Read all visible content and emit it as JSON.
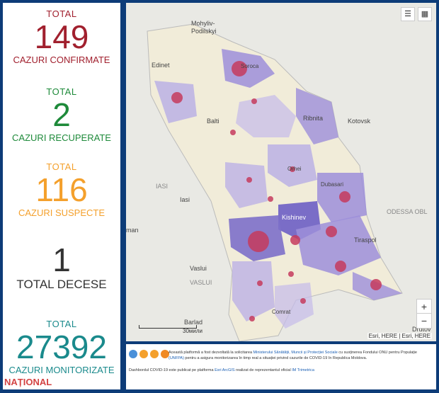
{
  "stats": [
    {
      "label_top": "TOTAL",
      "value": "149",
      "label_bottom": "CAZURI CONFIRMATE",
      "color": "#a1202e"
    },
    {
      "label_top": "TOTAL",
      "value": "2",
      "label_bottom": "CAZURI RECUPERATE",
      "color": "#1e8a3a"
    },
    {
      "label_top": "TOTAL",
      "value": "116",
      "label_bottom": "CAZURI SUSPECTE",
      "color": "#f4a02c"
    },
    {
      "label_top": "",
      "value": "1",
      "label_bottom": "TOTAL DECESE",
      "color": "#333333"
    },
    {
      "label_top": "TOTAL",
      "value": "27392",
      "label_bottom": "CAZURI MONITORIZATE",
      "color": "#1a8a8c"
    }
  ],
  "watermark": "NAȚIONAL",
  "map": {
    "labels": {
      "mohyliv": "Mohyliv-",
      "podilskyi": "Podilskyi",
      "edinet": "Edinet",
      "soroca": "Soroca",
      "balti": "Balti",
      "ribnita": "Ribnita",
      "kotovsk": "Kotovsk",
      "orhei": "Orhei",
      "dubasari": "Dubasari",
      "iasi_upper": "IASI",
      "iasi": "Iasi",
      "kishinev": "Kishinev",
      "tiraspol": "Tiraspol",
      "odessa": "ODESSA OBL",
      "vaslui": "Vaslui",
      "vaslui_upper": "VASLUI",
      "comrat": "Comrat",
      "barlad": "Barlad",
      "man": "man",
      "drutov": "Drutov"
    },
    "scale_label": "30мили",
    "attribution": "Esri, HERE | Esri, HERE",
    "legend_icon": "list-icon",
    "qr_icon": "qr-code-icon",
    "zoom_in": "+",
    "zoom_out": "−"
  },
  "footer": {
    "text1_a": "Această platformă a fost dezvoltată la solicitarea ",
    "text1_link1": "Ministerului Sănătății, Muncii și Protecției Sociale",
    "text1_b": " cu susținerea Fondului ONU pentru Populație ",
    "text1_link2": "(UNFPA)",
    "text1_c": " pentru a asigura monitorizarea în timp real a situației privind cazurile de COVID-19 în Republica Moldova.",
    "text2_a": "Dashbordul COVID-19 este publicat pe platforma ",
    "text2_link1": "Esri ArcGIS",
    "text2_b": " realizat de reprezentantul oficial ",
    "text2_link2": "IM Trimetrica"
  }
}
